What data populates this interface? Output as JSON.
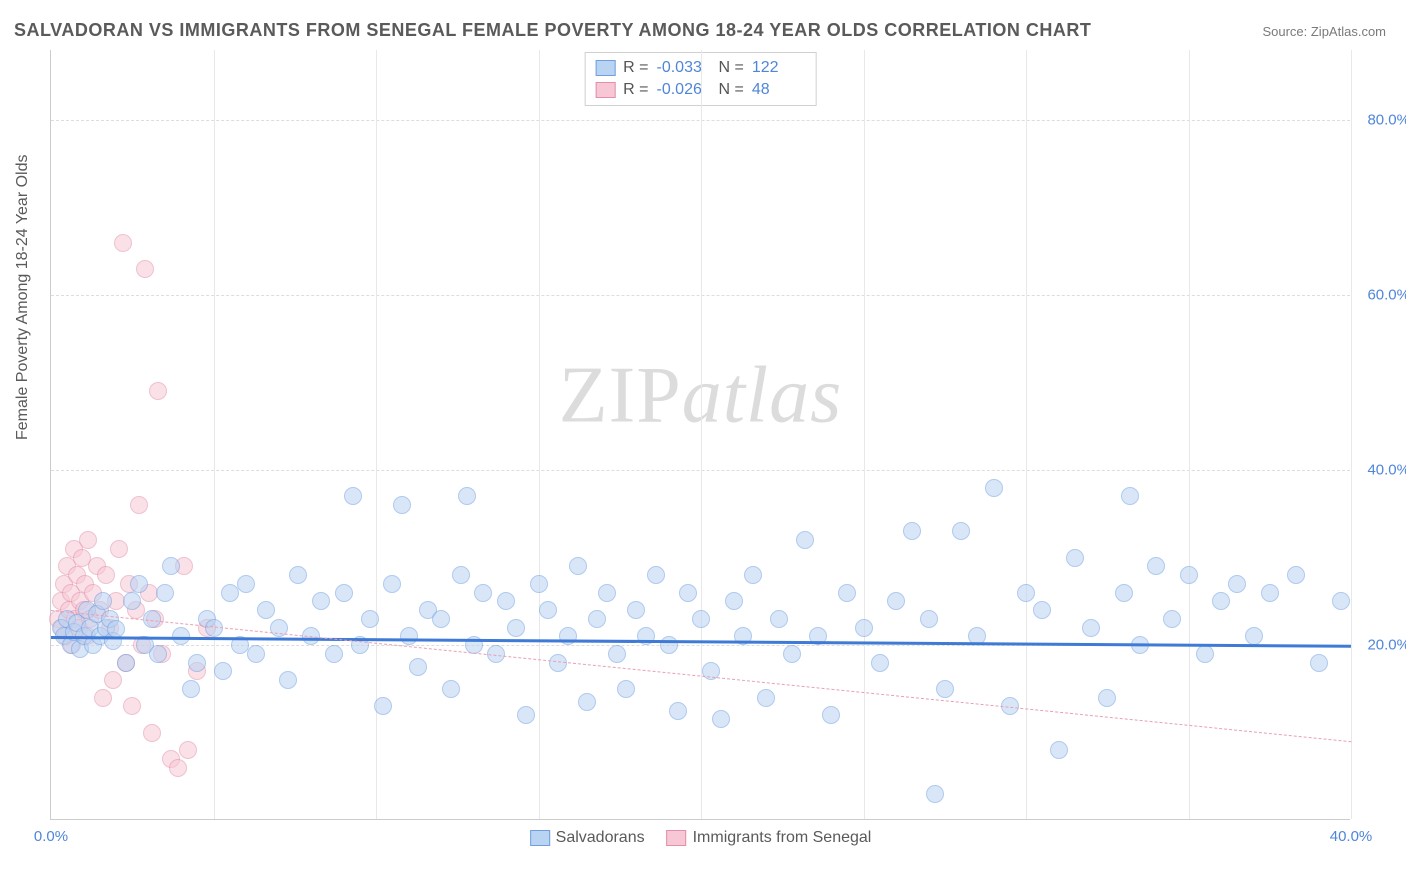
{
  "title": "SALVADORAN VS IMMIGRANTS FROM SENEGAL FEMALE POVERTY AMONG 18-24 YEAR OLDS CORRELATION CHART",
  "source": "Source: ZipAtlas.com",
  "y_axis_label": "Female Poverty Among 18-24 Year Olds",
  "watermark_a": "ZIP",
  "watermark_b": "atlas",
  "chart": {
    "type": "scatter",
    "xlim": [
      0,
      40
    ],
    "ylim": [
      0,
      88
    ],
    "x_ticks": [
      0,
      40
    ],
    "x_tick_labels": [
      "0.0%",
      "40.0%"
    ],
    "y_ticks": [
      20,
      40,
      60,
      80
    ],
    "y_tick_labels": [
      "20.0%",
      "40.0%",
      "60.0%",
      "80.0%"
    ],
    "x_grid_at": [
      5,
      10,
      15,
      20,
      25,
      30,
      35,
      40
    ],
    "background_color": "#ffffff",
    "grid_color": "#dddddd",
    "marker_radius": 9,
    "marker_stroke_width": 1.2,
    "series": [
      {
        "name": "Salvadorans",
        "fill": "#b9d3f3",
        "fill_opacity": 0.55,
        "stroke": "#6f9fe0",
        "R": "-0.033",
        "N": "122",
        "trend": {
          "y_at_x0": 21.0,
          "y_at_xmax": 20.0,
          "width": 3,
          "dash": "solid",
          "color": "#3f7ad6"
        },
        "points": [
          [
            0.3,
            22
          ],
          [
            0.4,
            21
          ],
          [
            0.5,
            23
          ],
          [
            0.6,
            20
          ],
          [
            0.7,
            21.5
          ],
          [
            0.8,
            22.5
          ],
          [
            0.9,
            19.5
          ],
          [
            1.0,
            21
          ],
          [
            1.1,
            24
          ],
          [
            1.2,
            22
          ],
          [
            1.3,
            20
          ],
          [
            1.4,
            23.5
          ],
          [
            1.5,
            21
          ],
          [
            1.6,
            25
          ],
          [
            1.7,
            22
          ],
          [
            1.8,
            23
          ],
          [
            1.9,
            20.5
          ],
          [
            2.0,
            21.8
          ],
          [
            2.3,
            18
          ],
          [
            2.5,
            25
          ],
          [
            2.7,
            27
          ],
          [
            2.9,
            20
          ],
          [
            3.1,
            23
          ],
          [
            3.3,
            19
          ],
          [
            3.5,
            26
          ],
          [
            3.7,
            29
          ],
          [
            4.0,
            21
          ],
          [
            4.3,
            15
          ],
          [
            4.5,
            18
          ],
          [
            4.8,
            23
          ],
          [
            5.0,
            22
          ],
          [
            5.3,
            17
          ],
          [
            5.5,
            26
          ],
          [
            5.8,
            20
          ],
          [
            6.0,
            27
          ],
          [
            6.3,
            19
          ],
          [
            6.6,
            24
          ],
          [
            7.0,
            22
          ],
          [
            7.3,
            16
          ],
          [
            7.6,
            28
          ],
          [
            8.0,
            21
          ],
          [
            8.3,
            25
          ],
          [
            8.7,
            19
          ],
          [
            9.0,
            26
          ],
          [
            9.3,
            37
          ],
          [
            9.5,
            20
          ],
          [
            9.8,
            23
          ],
          [
            10.2,
            13
          ],
          [
            10.5,
            27
          ],
          [
            10.8,
            36
          ],
          [
            11.0,
            21
          ],
          [
            11.3,
            17.5
          ],
          [
            11.6,
            24
          ],
          [
            12.0,
            23
          ],
          [
            12.3,
            15
          ],
          [
            12.6,
            28
          ],
          [
            12.8,
            37
          ],
          [
            13.0,
            20
          ],
          [
            13.3,
            26
          ],
          [
            13.7,
            19
          ],
          [
            14.0,
            25
          ],
          [
            14.3,
            22
          ],
          [
            14.6,
            12
          ],
          [
            15.0,
            27
          ],
          [
            15.3,
            24
          ],
          [
            15.6,
            18
          ],
          [
            15.9,
            21
          ],
          [
            16.2,
            29
          ],
          [
            16.5,
            13.5
          ],
          [
            16.8,
            23
          ],
          [
            17.1,
            26
          ],
          [
            17.4,
            19
          ],
          [
            17.7,
            15
          ],
          [
            18.0,
            24
          ],
          [
            18.3,
            21
          ],
          [
            18.6,
            28
          ],
          [
            19.0,
            20
          ],
          [
            19.3,
            12.5
          ],
          [
            19.6,
            26
          ],
          [
            20.0,
            23
          ],
          [
            20.3,
            17
          ],
          [
            20.6,
            11.5
          ],
          [
            21.0,
            25
          ],
          [
            21.3,
            21
          ],
          [
            21.6,
            28
          ],
          [
            22.0,
            14
          ],
          [
            22.4,
            23
          ],
          [
            22.8,
            19
          ],
          [
            23.2,
            32
          ],
          [
            23.6,
            21
          ],
          [
            24.0,
            12
          ],
          [
            24.5,
            26
          ],
          [
            25.0,
            22
          ],
          [
            25.5,
            18
          ],
          [
            26.0,
            25
          ],
          [
            26.5,
            33
          ],
          [
            27.0,
            23
          ],
          [
            27.2,
            3
          ],
          [
            27.5,
            15
          ],
          [
            28.0,
            33
          ],
          [
            28.5,
            21
          ],
          [
            29.0,
            38
          ],
          [
            29.5,
            13
          ],
          [
            30.0,
            26
          ],
          [
            30.5,
            24
          ],
          [
            31.0,
            8
          ],
          [
            31.5,
            30
          ],
          [
            32.0,
            22
          ],
          [
            32.5,
            14
          ],
          [
            33.0,
            26
          ],
          [
            33.2,
            37
          ],
          [
            33.5,
            20
          ],
          [
            34.0,
            29
          ],
          [
            34.5,
            23
          ],
          [
            35.0,
            28
          ],
          [
            35.5,
            19
          ],
          [
            36.0,
            25
          ],
          [
            36.5,
            27
          ],
          [
            37.0,
            21
          ],
          [
            37.5,
            26
          ],
          [
            38.3,
            28
          ],
          [
            39.0,
            18
          ],
          [
            39.7,
            25
          ]
        ]
      },
      {
        "name": "Immigrants from Senegal",
        "fill": "#f7c7d5",
        "fill_opacity": 0.55,
        "stroke": "#e38fa8",
        "R": "-0.026",
        "N": "48",
        "trend": {
          "y_at_x0": 24.0,
          "y_at_xmax": 9.0,
          "width": 1.2,
          "dash": "dashed",
          "color": "#e8a0b2"
        },
        "points": [
          [
            0.2,
            23
          ],
          [
            0.3,
            25
          ],
          [
            0.35,
            22
          ],
          [
            0.4,
            27
          ],
          [
            0.45,
            21
          ],
          [
            0.5,
            29
          ],
          [
            0.55,
            24
          ],
          [
            0.6,
            26
          ],
          [
            0.65,
            20
          ],
          [
            0.7,
            31
          ],
          [
            0.75,
            23
          ],
          [
            0.8,
            28
          ],
          [
            0.85,
            22
          ],
          [
            0.9,
            25
          ],
          [
            0.95,
            30
          ],
          [
            1.0,
            24
          ],
          [
            1.05,
            27
          ],
          [
            1.1,
            21
          ],
          [
            1.15,
            32
          ],
          [
            1.2,
            23
          ],
          [
            1.3,
            26
          ],
          [
            1.4,
            29
          ],
          [
            1.5,
            24
          ],
          [
            1.6,
            14
          ],
          [
            1.7,
            28
          ],
          [
            1.8,
            22
          ],
          [
            1.9,
            16
          ],
          [
            2.0,
            25
          ],
          [
            2.1,
            31
          ],
          [
            2.2,
            66
          ],
          [
            2.3,
            18
          ],
          [
            2.4,
            27
          ],
          [
            2.5,
            13
          ],
          [
            2.6,
            24
          ],
          [
            2.7,
            36
          ],
          [
            2.8,
            20
          ],
          [
            2.9,
            63
          ],
          [
            3.0,
            26
          ],
          [
            3.1,
            10
          ],
          [
            3.2,
            23
          ],
          [
            3.3,
            49
          ],
          [
            3.4,
            19
          ],
          [
            3.7,
            7
          ],
          [
            3.9,
            6
          ],
          [
            4.1,
            29
          ],
          [
            4.2,
            8
          ],
          [
            4.5,
            17
          ],
          [
            4.8,
            22
          ]
        ]
      }
    ]
  },
  "bottom_legend": {
    "a": "Salvadorans",
    "b": "Immigrants from Senegal"
  }
}
